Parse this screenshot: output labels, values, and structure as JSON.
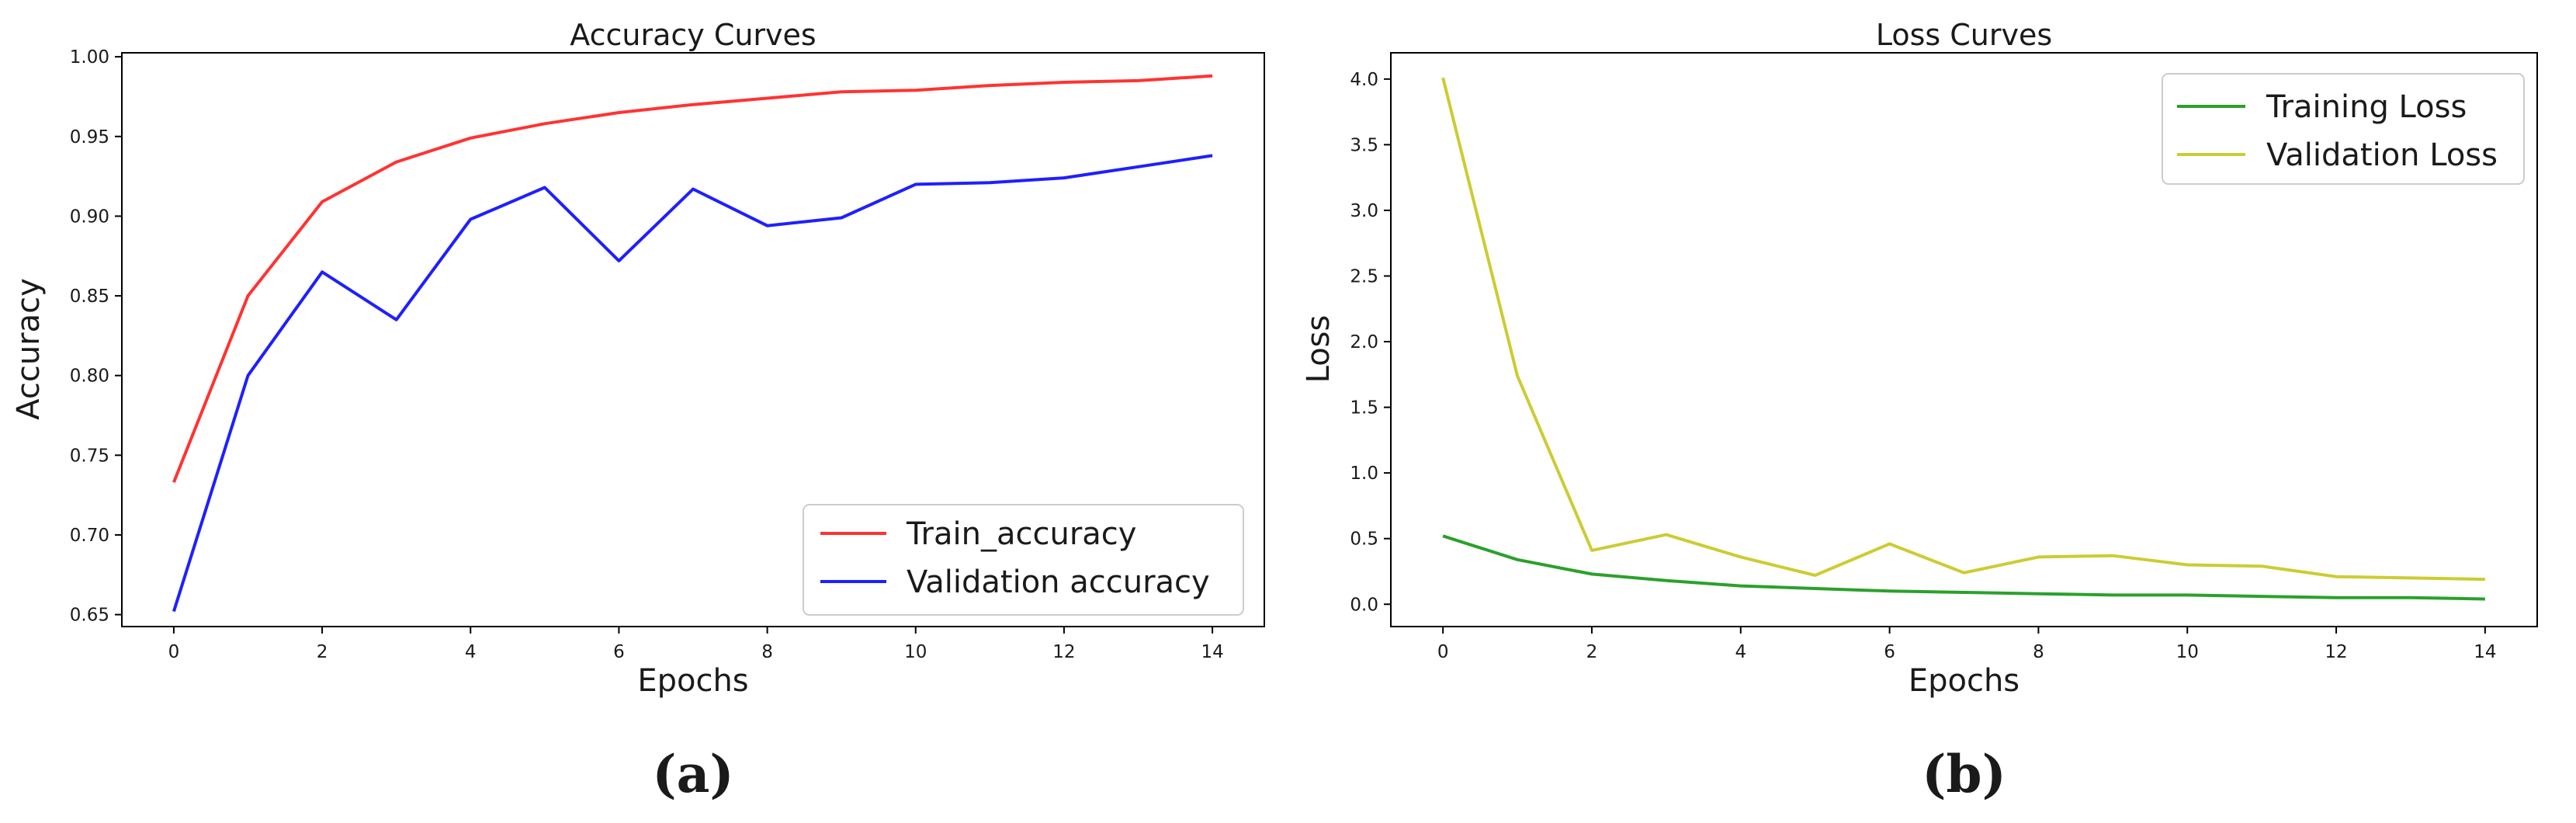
{
  "chart_data": [
    {
      "type": "line",
      "title": "Accuracy Curves",
      "xlabel": "Epochs",
      "ylabel": "Accuracy",
      "x": [
        0,
        1,
        2,
        3,
        4,
        5,
        6,
        7,
        8,
        9,
        10,
        11,
        12,
        13,
        14
      ],
      "xlim": [
        -0.7,
        14.7
      ],
      "ylim": [
        0.6425,
        1.0025
      ],
      "xticks": [
        0,
        2,
        4,
        6,
        8,
        10,
        12,
        14
      ],
      "yticks": [
        0.65,
        0.7,
        0.75,
        0.8,
        0.85,
        0.9,
        0.95,
        1.0
      ],
      "ytick_labels": [
        "0.65",
        "0.70",
        "0.75",
        "0.80",
        "0.85",
        "0.90",
        "0.95",
        "1.00"
      ],
      "grid": false,
      "legend_position": "lower-right",
      "series": [
        {
          "name": "Train_accuracy",
          "color": "#ff3333",
          "values": [
            0.733,
            0.85,
            0.909,
            0.934,
            0.949,
            0.958,
            0.965,
            0.97,
            0.974,
            0.978,
            0.979,
            0.982,
            0.984,
            0.985,
            0.988
          ]
        },
        {
          "name": "Validation accuracy",
          "color": "#1f1fff",
          "values": [
            0.652,
            0.8,
            0.865,
            0.835,
            0.898,
            0.918,
            0.872,
            0.917,
            0.894,
            0.899,
            0.92,
            0.921,
            0.924,
            0.931,
            0.938
          ]
        }
      ],
      "caption": "(a)"
    },
    {
      "type": "line",
      "title": "Loss Curves",
      "xlabel": "Epochs",
      "ylabel": "Loss",
      "x": [
        0,
        1,
        2,
        3,
        4,
        5,
        6,
        7,
        8,
        9,
        10,
        11,
        12,
        13,
        14
      ],
      "xlim": [
        -0.7,
        14.7
      ],
      "ylim": [
        -0.17,
        4.2
      ],
      "xticks": [
        0,
        2,
        4,
        6,
        8,
        10,
        12,
        14
      ],
      "yticks": [
        0.0,
        0.5,
        1.0,
        1.5,
        2.0,
        2.5,
        3.0,
        3.5,
        4.0
      ],
      "ytick_labels": [
        "0.0",
        "0.5",
        "1.0",
        "1.5",
        "2.0",
        "2.5",
        "3.0",
        "3.5",
        "4.0"
      ],
      "grid": false,
      "legend_position": "upper-right",
      "series": [
        {
          "name": "Training Loss",
          "color": "#2ca02c",
          "values": [
            0.52,
            0.34,
            0.23,
            0.18,
            0.14,
            0.12,
            0.1,
            0.09,
            0.08,
            0.07,
            0.07,
            0.06,
            0.05,
            0.05,
            0.04
          ]
        },
        {
          "name": "Validation Loss",
          "color": "#cccc33",
          "values": [
            4.01,
            1.74,
            0.41,
            0.53,
            0.36,
            0.22,
            0.46,
            0.24,
            0.36,
            0.37,
            0.3,
            0.29,
            0.21,
            0.2,
            0.19
          ]
        }
      ],
      "caption": "(b)"
    }
  ]
}
